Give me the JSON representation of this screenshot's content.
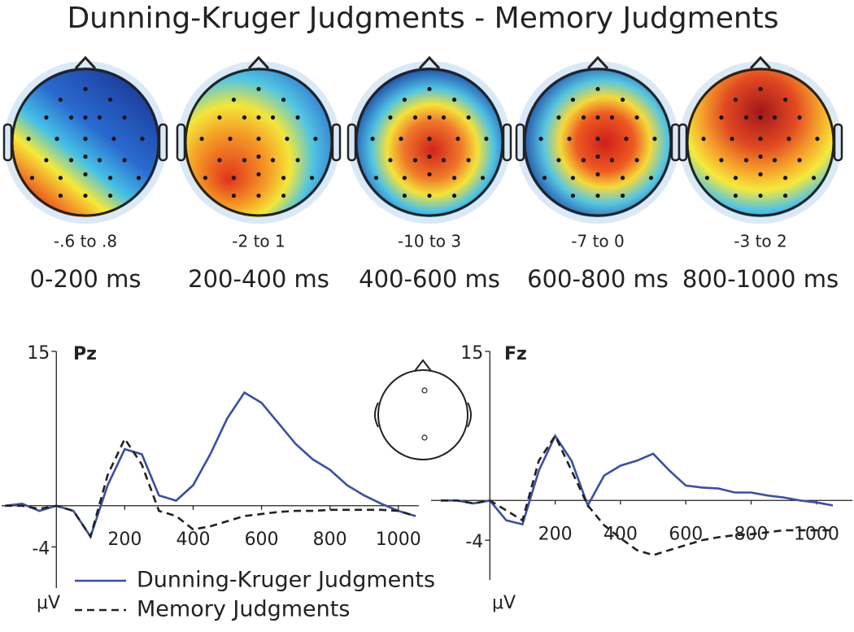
{
  "title": "Dunning-Kruger Judgments - Memory Judgments",
  "topomaps": [
    {
      "range": "-.6 to .8",
      "window": "0-200 ms"
    },
    {
      "range": "-2 to 1",
      "window": "200-400 ms"
    },
    {
      "range": "-10 to 3",
      "window": "400-600 ms"
    },
    {
      "range": "-7 to 0",
      "window": "600-800 ms"
    },
    {
      "range": "-3 to 2",
      "window": "800-1000 ms"
    }
  ],
  "chart_data": [
    {
      "type": "line",
      "title": "Pz",
      "y_label": "μV",
      "x": [
        -150,
        -100,
        -50,
        0,
        50,
        100,
        150,
        200,
        250,
        300,
        350,
        400,
        450,
        500,
        550,
        600,
        650,
        700,
        750,
        800,
        850,
        900,
        950,
        1000,
        1050
      ],
      "series": [
        {
          "name": "Dunning-Kruger Judgments",
          "color": "#3b4fa0",
          "dash": false,
          "values": [
            0,
            0.2,
            -0.5,
            0,
            -0.5,
            -3,
            2,
            5.5,
            5,
            1,
            0.5,
            2,
            5,
            8.5,
            11,
            10,
            8,
            6,
            4.5,
            3.5,
            2,
            1,
            0.2,
            -0.5,
            -1
          ]
        },
        {
          "name": "Memory Judgments",
          "color": "#222222",
          "dash": true,
          "values": [
            0,
            0,
            -0.3,
            0,
            -0.5,
            -3,
            3,
            6.5,
            4,
            -0.5,
            -1,
            -2.3,
            -2,
            -1.5,
            -1,
            -0.8,
            -0.6,
            -0.5,
            -0.5,
            -0.4,
            -0.4,
            -0.4,
            -0.4,
            -0.5,
            -1
          ]
        }
      ],
      "xlim": [
        -160,
        1060
      ],
      "ylim": [
        -8,
        15
      ],
      "xticks": [
        200,
        400,
        600,
        800,
        1000
      ],
      "yticks": [
        -4,
        15
      ]
    },
    {
      "type": "line",
      "title": "Fz",
      "y_label": "μV",
      "x": [
        -150,
        -100,
        -50,
        0,
        50,
        100,
        150,
        200,
        250,
        300,
        350,
        400,
        450,
        500,
        550,
        600,
        650,
        700,
        750,
        800,
        850,
        900,
        950,
        1000,
        1050
      ],
      "series": [
        {
          "color": "#3b4fa0",
          "dash": false,
          "values": [
            0,
            0,
            -0.3,
            0,
            -2,
            -2.4,
            3,
            6.5,
            4,
            -0.5,
            2.5,
            3.5,
            4,
            4.7,
            3,
            1.5,
            1.3,
            1.2,
            0.8,
            0.8,
            0.5,
            0.3,
            0,
            -0.2,
            -0.5
          ]
        },
        {
          "color": "#222222",
          "dash": true,
          "values": [
            0,
            0,
            -0.3,
            0,
            -1,
            -2,
            4,
            6.5,
            3,
            -0.5,
            -2.5,
            -3.8,
            -5,
            -5.5,
            -5,
            -4.5,
            -4,
            -3.7,
            -3.5,
            -3.4,
            -3.2,
            -3,
            -3,
            -3,
            -3
          ]
        }
      ],
      "xlim": [
        -180,
        1110
      ],
      "ylim": [
        -8,
        15
      ],
      "xticks": [
        200,
        400,
        600,
        800,
        1000
      ],
      "yticks": [
        -4,
        15
      ]
    }
  ]
}
